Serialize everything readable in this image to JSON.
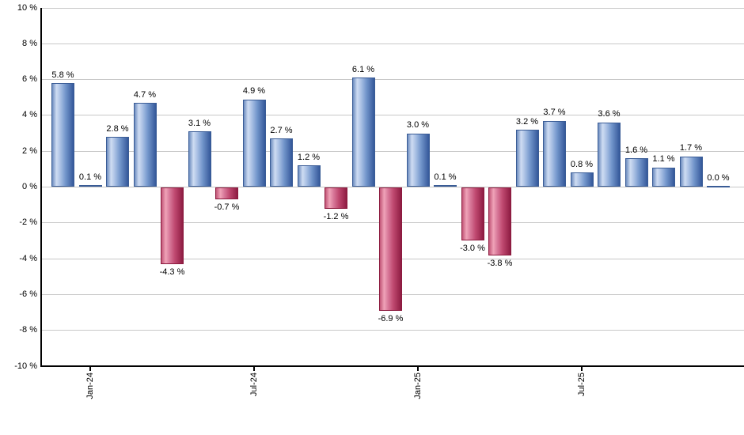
{
  "chart_data": {
    "type": "bar",
    "title": "",
    "description": "Monthly total returns bar chart, positive months blue, negative months red",
    "values": [
      5.8,
      0.1,
      2.8,
      4.7,
      -4.3,
      3.1,
      -0.7,
      4.9,
      2.7,
      1.2,
      -1.2,
      6.1,
      -6.9,
      3.0,
      0.1,
      -3.0,
      -3.8,
      3.2,
      3.7,
      0.8,
      3.6,
      1.6,
      1.1,
      1.7,
      0.0
    ],
    "bar_labels": [
      "5.8 %",
      "0.1 %",
      "2.8 %",
      "4.7 %",
      "-4.3 %",
      "3.1 %",
      "-0.7 %",
      "4.9 %",
      "2.7 %",
      "1.2 %",
      "-1.2 %",
      "6.1 %",
      "-6.9 %",
      "3.0 %",
      "0.1 %",
      "-3.0 %",
      "-3.8 %",
      "3.2 %",
      "3.7 %",
      "0.8 %",
      "3.6 %",
      "1.6 %",
      "1.1 %",
      "1.7 %",
      "0.0 %"
    ],
    "y_axis": {
      "min": -10,
      "max": 10,
      "step": 2,
      "tick_values": [
        10,
        8,
        6,
        4,
        2,
        0,
        -2,
        -4,
        -6,
        -8,
        -10
      ],
      "tick_labels": [
        "10 %",
        "8 %",
        "6 %",
        "4 %",
        "2 %",
        "0 %",
        "-2 %",
        "-4 %",
        "-6 %",
        "-8 %",
        "-10 %"
      ],
      "grid": true
    },
    "x_axis": {
      "ticks": [
        {
          "label": "Jan-24",
          "bar_index": 1
        },
        {
          "label": "Jul-24",
          "bar_index": 7
        },
        {
          "label": "Jan-25",
          "bar_index": 13
        },
        {
          "label": "Jul-25",
          "bar_index": 19
        }
      ]
    },
    "legend": "none",
    "colors": {
      "positive_gradient": [
        "#6c8cbf",
        "#cfdcf2",
        "#a9c0e4",
        "#7396cb",
        "#34589a"
      ],
      "positive_border": "#3a5c96",
      "negative_gradient": [
        "#c25577",
        "#efa3b8",
        "#d8799a",
        "#c04a71",
        "#8e1c42"
      ],
      "negative_border": "#8c1a3e",
      "grid": "#c8c8c8",
      "axis": "#000000",
      "text": "#000000"
    }
  }
}
